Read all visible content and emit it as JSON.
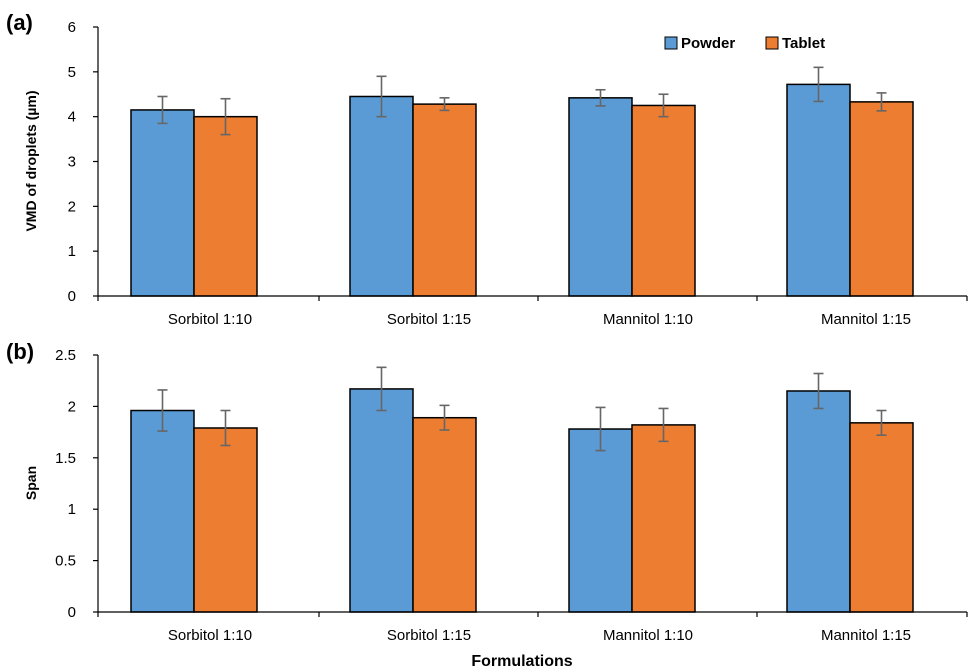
{
  "colors": {
    "powder": "#5b9bd5",
    "tablet": "#ed7d31",
    "bar_outline": "#000000",
    "error_bar": "#666666",
    "axis": "#000000"
  },
  "legend": {
    "placement": "top-right",
    "items": [
      "Powder",
      "Tablet"
    ]
  },
  "xlabel": "Formulations",
  "chart_data": [
    {
      "type": "bar",
      "panel_label": "(a)",
      "ylabel": "VMD of droplets (µm)",
      "ylim": [
        0,
        6
      ],
      "yticks": [
        0,
        1,
        2,
        3,
        4,
        5,
        6
      ],
      "ytick_labels": [
        "0",
        "1",
        "2",
        "3",
        "4",
        "5",
        "6"
      ],
      "grid": false,
      "categories": [
        "Sorbitol 1:10",
        "Sorbitol 1:15",
        "Mannitol 1:10",
        "Mannitol 1:15"
      ],
      "series": [
        {
          "name": "Powder",
          "values": [
            4.15,
            4.45,
            4.42,
            4.72
          ],
          "errors": [
            0.3,
            0.45,
            0.18,
            0.38
          ]
        },
        {
          "name": "Tablet",
          "values": [
            4.0,
            4.28,
            4.25,
            4.33
          ],
          "errors": [
            0.4,
            0.14,
            0.25,
            0.2
          ]
        }
      ]
    },
    {
      "type": "bar",
      "panel_label": "(b)",
      "ylabel": "Span",
      "ylim": [
        0,
        2.5
      ],
      "yticks": [
        0,
        0.5,
        1,
        1.5,
        2,
        2.5
      ],
      "ytick_labels": [
        "0",
        "0.5",
        "1",
        "1.5",
        "2",
        "2.5"
      ],
      "grid": false,
      "categories": [
        "Sorbitol 1:10",
        "Sorbitol 1:15",
        "Mannitol 1:10",
        "Mannitol 1:15"
      ],
      "series": [
        {
          "name": "Powder",
          "values": [
            1.96,
            2.17,
            1.78,
            2.15
          ],
          "errors": [
            0.2,
            0.21,
            0.21,
            0.17
          ]
        },
        {
          "name": "Tablet",
          "values": [
            1.79,
            1.89,
            1.82,
            1.84
          ],
          "errors": [
            0.17,
            0.12,
            0.16,
            0.12
          ]
        }
      ]
    }
  ]
}
